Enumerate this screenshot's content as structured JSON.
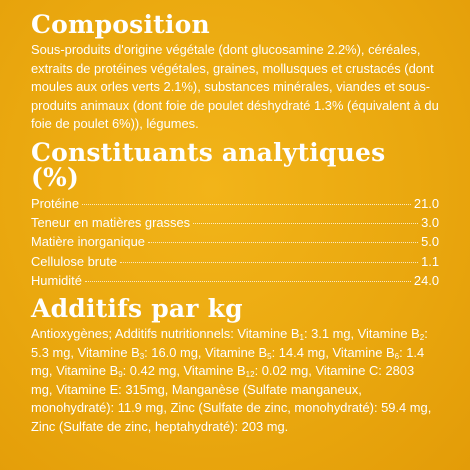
{
  "composition": {
    "title": "Composition",
    "text": "Sous-produits d'origine végétale (dont glucosamine 2.2%), céréales, extraits de protéines végétales, graines, mollusques et crustacés (dont moules aux orles verts 2.1%), substances minérales, viandes et sous-produits animaux (dont foie de poulet déshydraté 1.3% (équivalent à du foie de poulet 6%)), légumes."
  },
  "constituants": {
    "title": "Constituants analytiques (%)",
    "rows": [
      {
        "label": "Protéine",
        "value": "21.0"
      },
      {
        "label": "Teneur en matières grasses",
        "value": "3.0"
      },
      {
        "label": "Matière inorganique",
        "value": "5.0"
      },
      {
        "label": "Cellulose brute",
        "value": "1.1"
      },
      {
        "label": "Humidité",
        "value": "24.0"
      }
    ]
  },
  "additifs": {
    "title": "Additifs par kg",
    "intro": "Antioxygènes; Additifs nutritionnels: ",
    "vitamins": [
      {
        "name": "Vitamine B",
        "sub": "1",
        "value": ": 3.1 mg, "
      },
      {
        "name": "Vitamine B",
        "sub": "2",
        "value": ": 5.3 mg, "
      },
      {
        "name": "Vitamine B",
        "sub": "3",
        "value": ": 16.0 mg, "
      },
      {
        "name": "Vitamine B",
        "sub": "5",
        "value": ": 14.4 mg, "
      },
      {
        "name": "Vitamine B",
        "sub": "6",
        "value": ": 1.4 mg, "
      },
      {
        "name": "Vitamine B",
        "sub": "9",
        "value": ": 0.42 mg, "
      },
      {
        "name": "Vitamine B",
        "sub": "12",
        "value": ": 0.02 mg, "
      }
    ],
    "rest": "Vitamine C: 2803 mg, Vitamine E: 315mg, Manganèse (Sulfate manganeux, monohydraté): 11.9 mg, Zinc (Sulfate de zinc, monohydraté): 59.4 mg, Zinc (Sulfate de zinc, heptahydraté): 203 mg."
  }
}
